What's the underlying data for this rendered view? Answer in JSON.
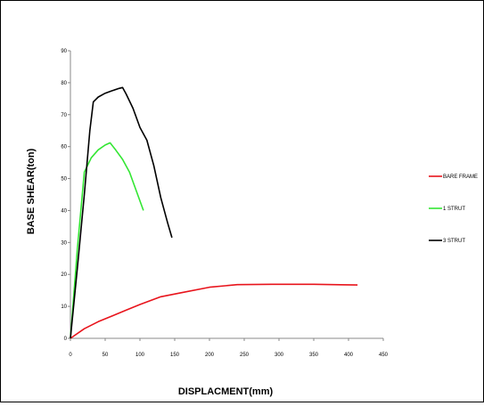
{
  "chart_data": {
    "type": "line",
    "title": "",
    "xlabel": "DISPLACMENT(mm)",
    "ylabel": "BASE  SHEAR(ton)",
    "xlim": [
      0,
      450
    ],
    "ylim": [
      0,
      90
    ],
    "xticks": [
      0,
      50,
      100,
      150,
      200,
      250,
      300,
      350,
      400,
      450
    ],
    "yticks": [
      0,
      10,
      20,
      30,
      40,
      50,
      60,
      70,
      80,
      90
    ],
    "grid": false,
    "legend_position": "right",
    "series": [
      {
        "name": "BARE FRAME",
        "color": "#e8141c",
        "x": [
          0,
          20,
          40,
          60,
          80,
          100,
          130,
          160,
          200,
          240,
          290,
          350,
          413
        ],
        "y": [
          0,
          3,
          5.2,
          7,
          8.8,
          10.6,
          13,
          14.3,
          16,
          16.8,
          16.9,
          16.9,
          16.7
        ]
      },
      {
        "name": "1 STRUT",
        "color": "#33e633",
        "x": [
          0,
          10,
          20,
          30,
          40,
          50,
          57,
          65,
          75,
          85,
          95,
          105
        ],
        "y": [
          0,
          28,
          52,
          56.5,
          59,
          60.5,
          61.2,
          59,
          56,
          52,
          46,
          40
        ]
      },
      {
        "name": "3 STRUT",
        "color": "#000000",
        "x": [
          0,
          10,
          20,
          28,
          33,
          40,
          50,
          60,
          70,
          75,
          80,
          90,
          100,
          110,
          120,
          130,
          140,
          146
        ],
        "y": [
          0,
          22,
          45,
          65,
          74,
          75.5,
          76.7,
          77.5,
          78.2,
          78.5,
          76.5,
          72,
          66,
          62,
          54,
          44,
          36,
          31.5
        ]
      }
    ]
  }
}
